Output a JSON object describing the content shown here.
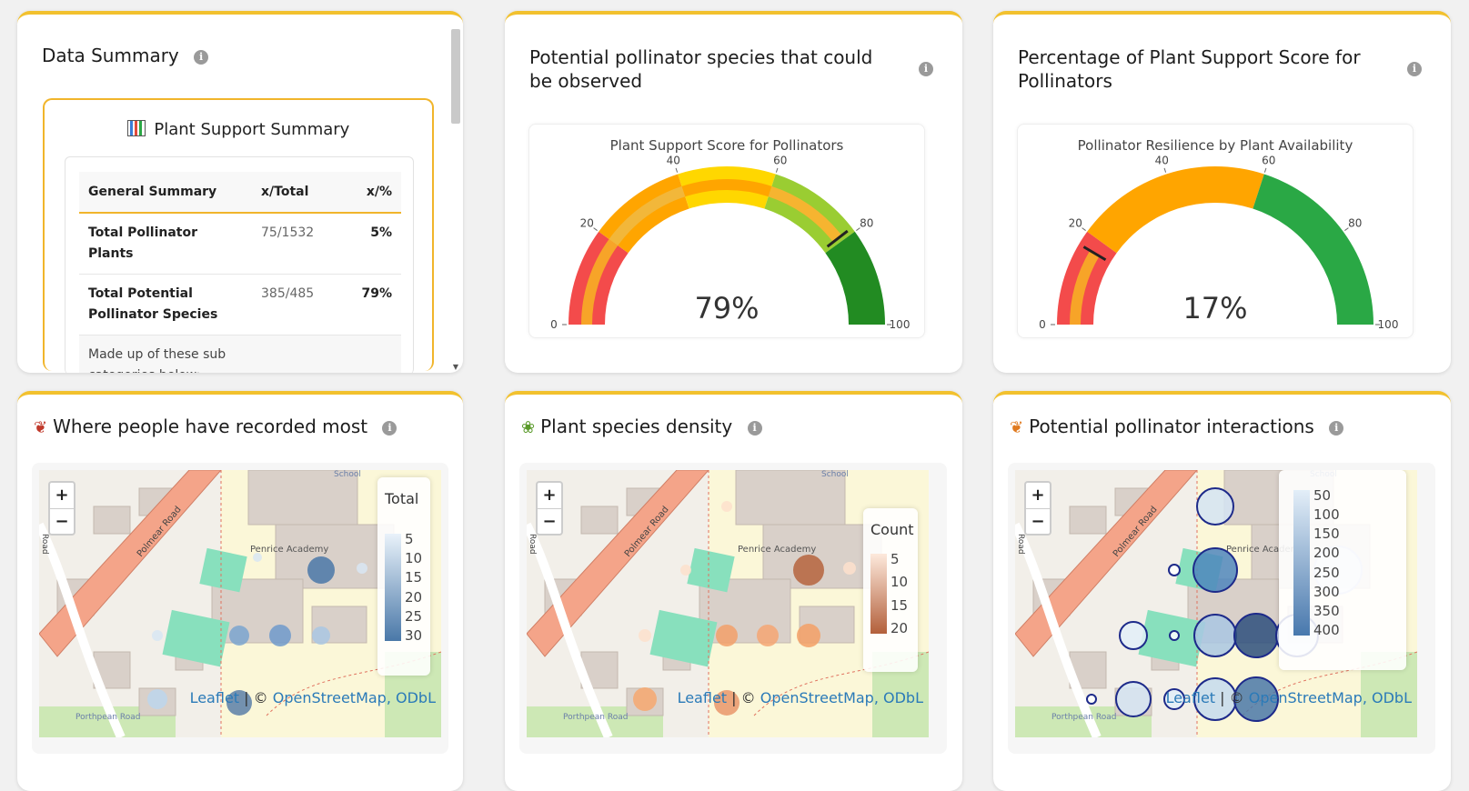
{
  "summary_card": {
    "title": "Data Summary",
    "heading": "Plant Support Summary",
    "columns": [
      "General Summary",
      "x/Total",
      "x/%"
    ],
    "rows": [
      {
        "label": "Total Pollinator Plants",
        "total": "75/1532",
        "pct": "5%"
      },
      {
        "label": "Total Potential Pollinator Species",
        "total": "385/485",
        "pct": "79%"
      },
      {
        "label": "Made up of these sub categories below:",
        "total": "",
        "pct": ""
      }
    ]
  },
  "species_card": {
    "title": "Potential pollinator species that could be observed",
    "gauge_title": "Plant Support Score for Pollinators",
    "value_label": "79%",
    "ticks": [
      "0",
      "20",
      "40",
      "60",
      "80",
      "100"
    ]
  },
  "percent_card": {
    "title": "Percentage of Plant Support Score for Pollinators",
    "gauge_title": "Pollinator Resilience by Plant Availability",
    "value_label": "17%",
    "ticks": [
      "0",
      "20",
      "40",
      "60",
      "80",
      "100"
    ]
  },
  "chart_data": [
    {
      "type": "gauge",
      "title": "Plant Support Score for Pollinators",
      "value": 79,
      "range": [
        0,
        100
      ],
      "bands": [
        {
          "from": 0,
          "to": 20,
          "color": "#f34b4b"
        },
        {
          "from": 20,
          "to": 40,
          "color": "#ffa500"
        },
        {
          "from": 40,
          "to": 60,
          "color": "#ffd700"
        },
        {
          "from": 60,
          "to": 80,
          "color": "#9acd32"
        },
        {
          "from": 80,
          "to": 100,
          "color": "#228b22"
        }
      ]
    },
    {
      "type": "gauge",
      "title": "Pollinator Resilience by Plant Availability",
      "value": 17,
      "range": [
        0,
        100
      ],
      "bands": [
        {
          "from": 0,
          "to": 20,
          "color": "#f34b4b"
        },
        {
          "from": 20,
          "to": 60,
          "color": "#ffa500"
        },
        {
          "from": 60,
          "to": 100,
          "color": "#2aa845"
        }
      ]
    }
  ],
  "map_common": {
    "zoom_in": "+",
    "zoom_out": "−",
    "attribution_leaflet": "Leaflet",
    "attribution_sep": " | © ",
    "attribution_osm": "OpenStreetMap, ODbL",
    "labels": {
      "road_main": "Polmear Road",
      "road_side": "Road",
      "school": "School",
      "academy": "Penrice Academy",
      "porthpean": "Porthpean Road"
    }
  },
  "maps": [
    {
      "title": "Where people have recorded most",
      "icon": "butterfly-red-icon",
      "legend_title": "Total",
      "legend_ticks": [
        "5",
        "10",
        "15",
        "20",
        "25",
        "30"
      ],
      "gradient": [
        "#e9f2fa",
        "#4a78a8"
      ]
    },
    {
      "title": "Plant species density",
      "icon": "seedling-icon",
      "legend_title": "Count",
      "legend_ticks": [
        "5",
        "10",
        "15",
        "20"
      ],
      "gradient": [
        "#fde9dc",
        "#b3603b"
      ]
    },
    {
      "title": "Potential pollinator interactions",
      "icon": "butterfly-orange-icon",
      "legend_title": "",
      "legend_ticks": [
        "50",
        "100",
        "150",
        "200",
        "250",
        "300",
        "350",
        "400"
      ],
      "gradient": [
        "#e3eef8",
        "#4878ad"
      ]
    }
  ]
}
